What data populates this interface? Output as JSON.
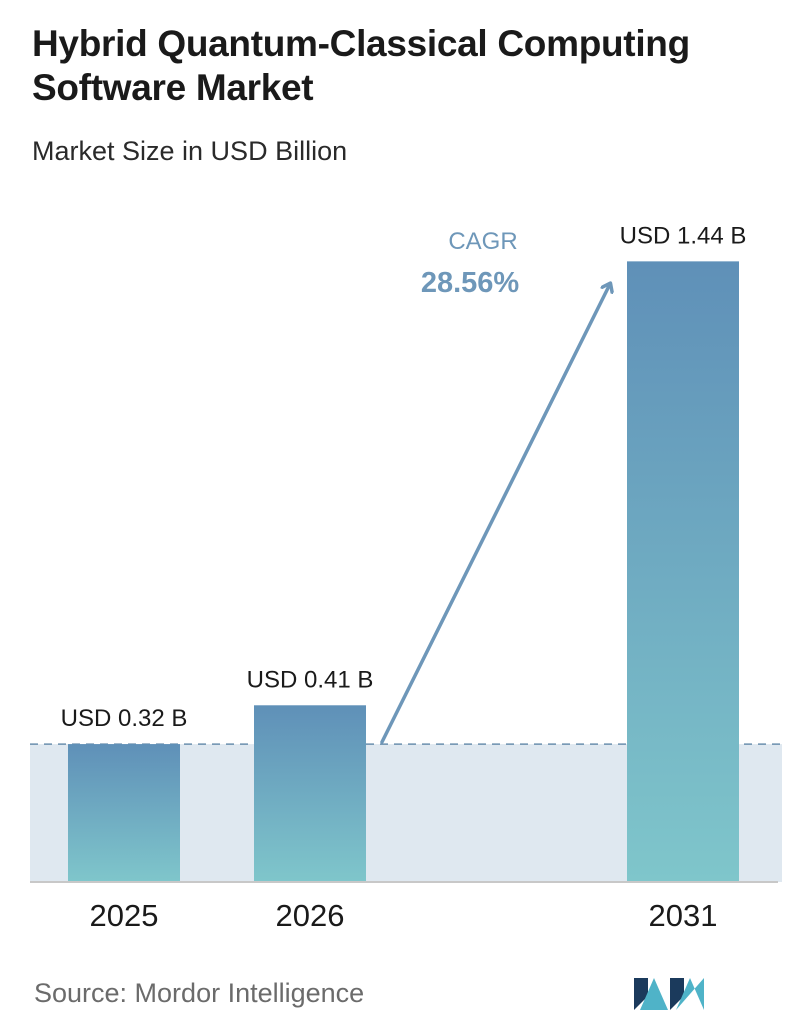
{
  "title": "Hybrid Quantum-Classical Computing Software Market",
  "subtitle": "Market Size in USD Billion",
  "source": "Source:  Mordor Intelligence",
  "cagr": {
    "label": "CAGR",
    "value": "28.56%"
  },
  "colors": {
    "bar_top": "#5f90b8",
    "bar_bottom": "#7fc6cb",
    "band": "#dfe8f0",
    "cagr": "#6e97b9",
    "logo_dark": "#1b3a5c",
    "logo_light": "#4fb3c8"
  },
  "chart_data": {
    "type": "bar",
    "categories": [
      "2025",
      "2026",
      "2031"
    ],
    "values": [
      0.32,
      0.41,
      1.44
    ],
    "data_labels": [
      "USD 0.32 B",
      "USD 0.41 B",
      "USD 1.44 B"
    ],
    "unit": "USD Billion",
    "reference_line_value": 0.32,
    "grid": false,
    "legend": "none"
  }
}
